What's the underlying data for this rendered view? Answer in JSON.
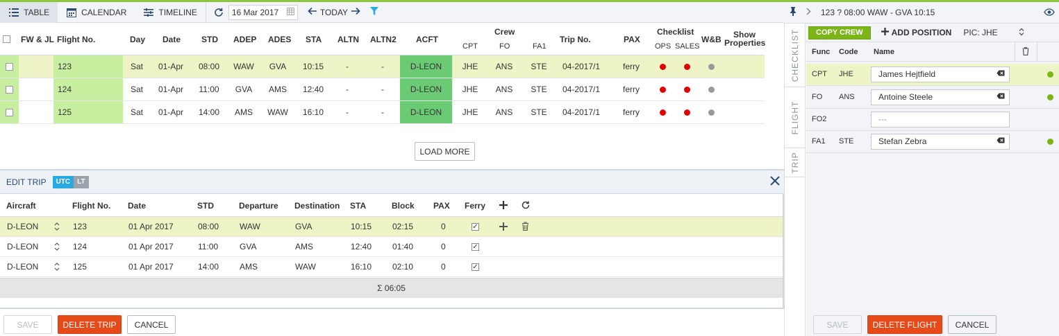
{
  "colors": {
    "accent_green": "#8cc63f",
    "status_red": "#e00000",
    "status_grey": "#999999",
    "acft_green": "#6acb74",
    "danger": "#e64a19",
    "utc_blue": "#29a9e0"
  },
  "toolbar": {
    "tabs": [
      {
        "label": "TABLE",
        "icon": "list-icon",
        "active": true
      },
      {
        "label": "CALENDAR",
        "icon": "calendar-icon",
        "active": false
      },
      {
        "label": "TIMELINE",
        "icon": "timeline-icon",
        "active": false
      }
    ],
    "date": "16 Mar 2017",
    "today_label": "TODAY"
  },
  "flights_table": {
    "headers": {
      "fwjl": "FW & JL",
      "flight_no": "Flight No.",
      "day": "Day",
      "date": "Date",
      "std": "STD",
      "adep": "ADEP",
      "ades": "ADES",
      "sta": "STA",
      "altn": "ALTN",
      "altn2": "ALTN2",
      "acft": "ACFT",
      "crew": "Crew",
      "cpt": "CPT",
      "fo": "FO",
      "fa1": "FA1",
      "trip_no": "Trip No.",
      "pax": "PAX",
      "checklist": "Checklist",
      "ops": "OPS",
      "sales": "SALES",
      "wb": "W&B",
      "show": "Show",
      "properties": "Properties"
    },
    "rows": [
      {
        "flight_no": "123",
        "day": "Sat",
        "date": "01-Apr",
        "std": "08:00",
        "adep": "WAW",
        "ades": "GVA",
        "sta": "10:15",
        "altn": "-",
        "altn2": "-",
        "acft": "D-LEON",
        "cpt": "JHE",
        "fo": "ANS",
        "fa1": "STE",
        "trip_no": "04-2017/1",
        "pax": "ferry",
        "ops": "red",
        "sales": "red",
        "wb": "grey",
        "selected": true
      },
      {
        "flight_no": "124",
        "day": "Sat",
        "date": "01-Apr",
        "std": "11:00",
        "adep": "GVA",
        "ades": "AMS",
        "sta": "12:40",
        "altn": "-",
        "altn2": "-",
        "acft": "D-LEON",
        "cpt": "JHE",
        "fo": "ANS",
        "fa1": "STE",
        "trip_no": "04-2017/1",
        "pax": "ferry",
        "ops": "red",
        "sales": "red",
        "wb": "grey",
        "selected": false
      },
      {
        "flight_no": "125",
        "day": "Sat",
        "date": "01-Apr",
        "std": "14:00",
        "adep": "AMS",
        "ades": "WAW",
        "sta": "16:10",
        "altn": "-",
        "altn2": "-",
        "acft": "D-LEON",
        "cpt": "JHE",
        "fo": "ANS",
        "fa1": "STE",
        "trip_no": "04-2017/1",
        "pax": "ferry",
        "ops": "red",
        "sales": "red",
        "wb": "grey",
        "selected": false
      }
    ],
    "load_more": "LOAD MORE"
  },
  "edit_trip": {
    "title": "EDIT TRIP",
    "utc": "UTC",
    "lt": "LT",
    "headers": {
      "aircraft": "Aircraft",
      "flight_no": "Flight No.",
      "date": "Date",
      "std": "STD",
      "departure": "Departure",
      "destination": "Destination",
      "sta": "STA",
      "block": "Block",
      "pax": "PAX",
      "ferry": "Ferry"
    },
    "rows": [
      {
        "aircraft": "D-LEON",
        "flight_no": "123",
        "date": "01 Apr 2017",
        "std": "08:00",
        "departure": "WAW",
        "destination": "GVA",
        "sta": "10:15",
        "block": "02:15",
        "pax": "0",
        "ferry": true,
        "selected": true
      },
      {
        "aircraft": "D-LEON",
        "flight_no": "124",
        "date": "01 Apr 2017",
        "std": "11:00",
        "departure": "GVA",
        "destination": "AMS",
        "sta": "12:40",
        "block": "01:40",
        "pax": "0",
        "ferry": true,
        "selected": false
      },
      {
        "aircraft": "D-LEON",
        "flight_no": "125",
        "date": "01 Apr 2017",
        "std": "14:00",
        "departure": "AMS",
        "destination": "WAW",
        "sta": "16:10",
        "block": "02:10",
        "pax": "0",
        "ferry": true,
        "selected": false
      }
    ],
    "total": "Σ 06:05",
    "buttons": {
      "save": "SAVE",
      "delete": "DELETE TRIP",
      "cancel": "CANCEL"
    }
  },
  "side_tabs": [
    "CHECKLIST",
    "FLIGHT",
    "TRIP"
  ],
  "flight_panel": {
    "title": "123 ? 08:00 WAW - GVA 10:15",
    "copy_crew": "COPY CREW",
    "add_position": "ADD POSITION",
    "pic": "PIC: JHE",
    "headers": {
      "func": "Func",
      "code": "Code",
      "name": "Name"
    },
    "crew": [
      {
        "func": "CPT",
        "code": "JHE",
        "name": "James Hejtfield",
        "placeholder": "",
        "status": true,
        "selected": true
      },
      {
        "func": "FO",
        "code": "ANS",
        "name": "Antoine Steele",
        "placeholder": "",
        "status": true,
        "selected": false
      },
      {
        "func": "FO2",
        "code": "",
        "name": "",
        "placeholder": "---",
        "status": false,
        "selected": false
      },
      {
        "func": "FA1",
        "code": "STE",
        "name": "Stefan Zebra",
        "placeholder": "",
        "status": true,
        "selected": false
      }
    ],
    "buttons": {
      "save": "SAVE",
      "delete": "DELETE FLIGHT",
      "cancel": "CANCEL"
    }
  }
}
